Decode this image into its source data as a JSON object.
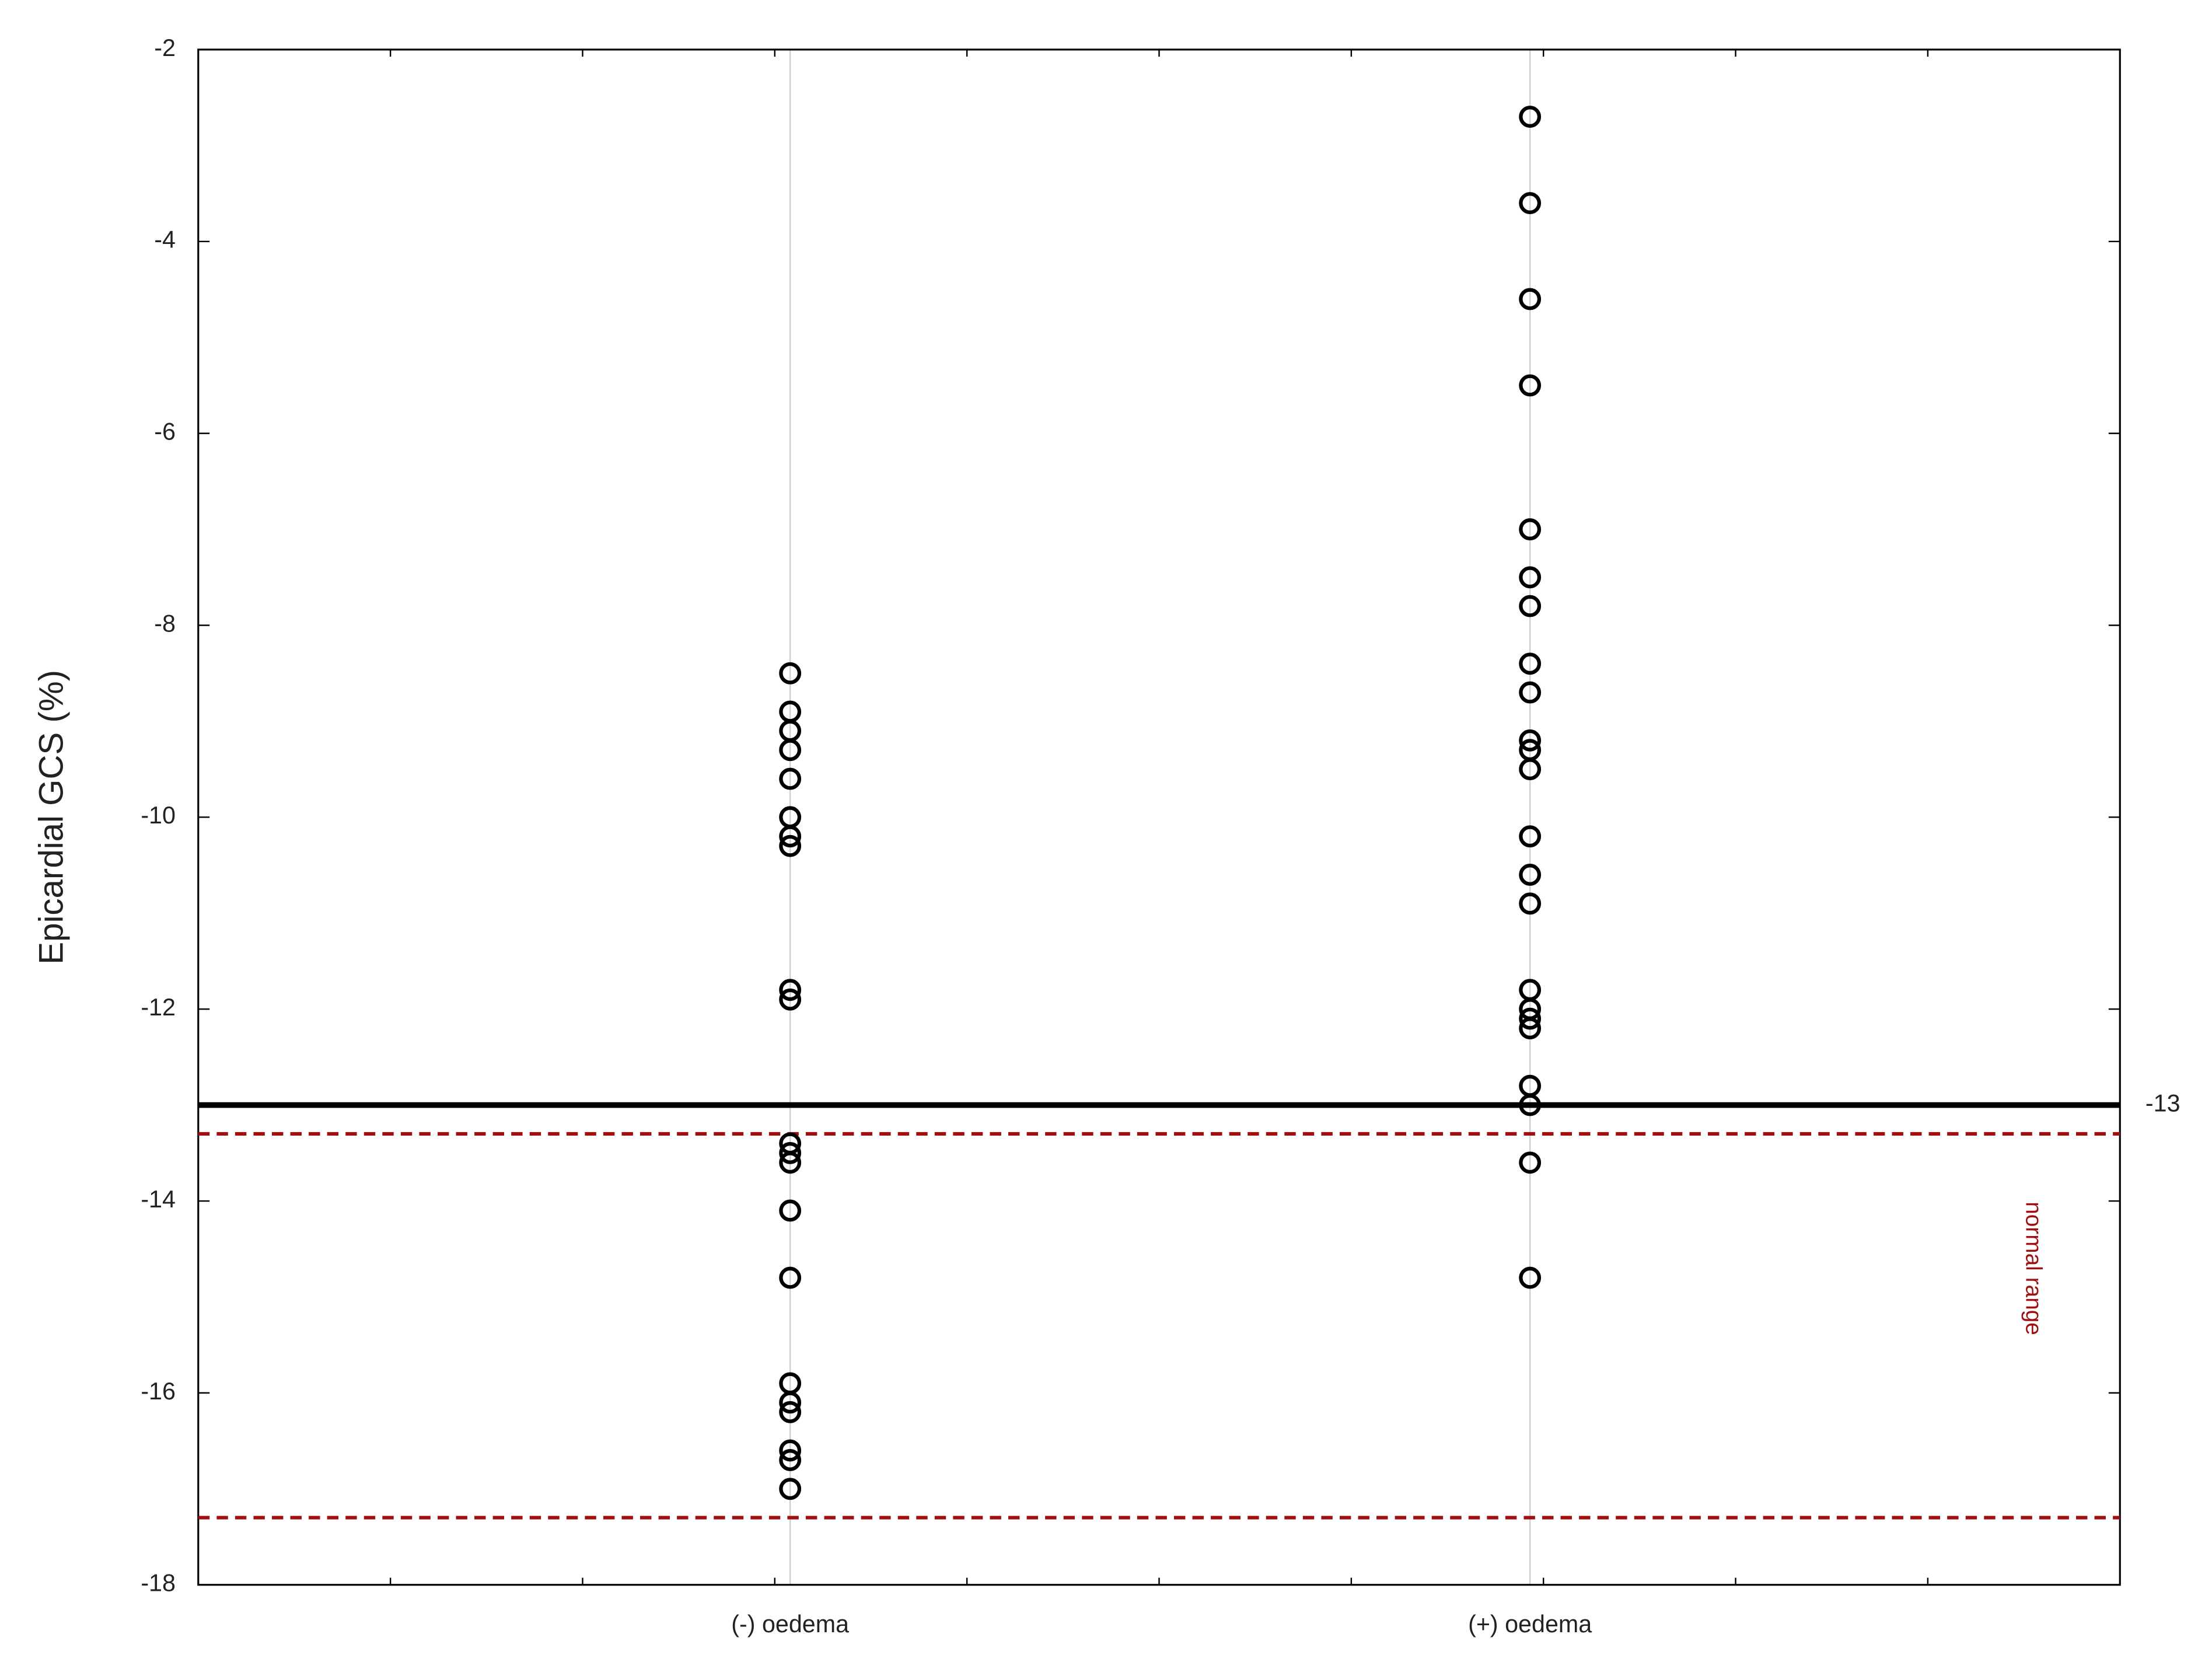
{
  "chart_data": {
    "type": "strip",
    "y_label": "Epicardial GCS (%)",
    "categories": [
      "(-) oedema",
      "(+) oedema"
    ],
    "values": [
      [
        -8.5,
        -8.9,
        -9.1,
        -9.3,
        -9.6,
        -10.0,
        -10.2,
        -10.3,
        -11.8,
        -11.9,
        -13.4,
        -13.5,
        -13.6,
        -14.1,
        -14.8,
        -15.9,
        -16.1,
        -16.2,
        -16.6,
        -16.7,
        -17.0
      ],
      [
        -2.7,
        -3.6,
        -4.6,
        -5.5,
        -7.0,
        -7.5,
        -7.8,
        -8.4,
        -8.7,
        -9.2,
        -9.3,
        -9.5,
        -10.2,
        -10.6,
        -10.9,
        -11.8,
        -12.0,
        -12.1,
        -12.2,
        -12.8,
        -13.0,
        -13.6,
        -14.8
      ]
    ],
    "color": "#000000",
    "ylim": [
      -18,
      -2
    ],
    "yticks": [
      -18,
      -16,
      -14,
      -12,
      -10,
      -8,
      -6,
      -4,
      -2
    ],
    "grid": true,
    "reference_line": {
      "value": -13,
      "color": "#000000"
    },
    "normal_range": {
      "values": [
        -13.3,
        -17.3
      ],
      "label": "normal range",
      "color": "#a01010"
    }
  }
}
